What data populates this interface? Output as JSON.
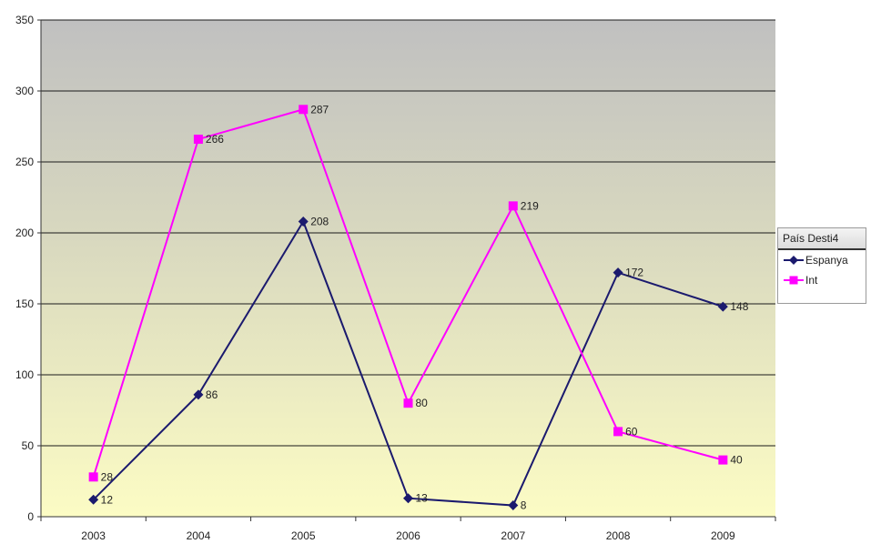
{
  "chart_data": {
    "type": "line",
    "categories": [
      "2003",
      "2004",
      "2005",
      "2006",
      "2007",
      "2008",
      "2009"
    ],
    "ylim": [
      0,
      350
    ],
    "yticks": [
      0,
      50,
      100,
      150,
      200,
      250,
      300,
      350
    ],
    "grid": true,
    "legend": {
      "title": "País Desti4",
      "position": "right"
    },
    "series": [
      {
        "name": "Espanya",
        "values": [
          12,
          86,
          208,
          13,
          8,
          172,
          148
        ],
        "labels": [
          "12",
          "86",
          "208",
          "13",
          "8",
          "172",
          "148"
        ],
        "color": "#1b1a6e",
        "marker": "diamond"
      },
      {
        "name": "Int",
        "values": [
          28,
          266,
          287,
          80,
          219,
          60,
          40
        ],
        "labels": [
          "28",
          "266",
          "287",
          "80",
          "219",
          "60",
          "40"
        ],
        "color": "#ff00ff",
        "marker": "square"
      }
    ]
  }
}
